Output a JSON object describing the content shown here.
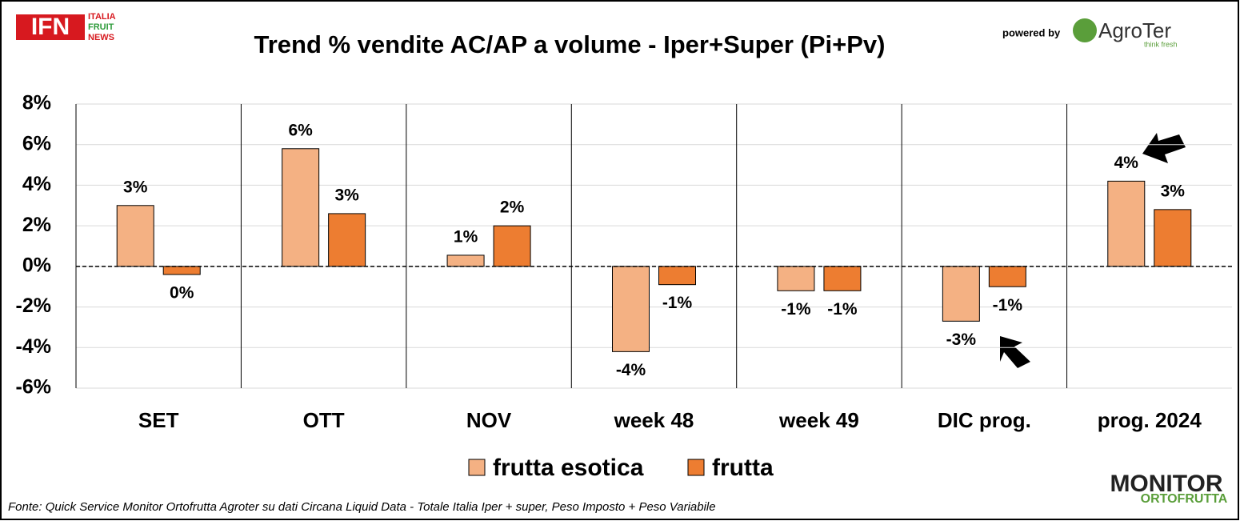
{
  "chart_data": {
    "type": "bar",
    "title": "Trend % vendite AC/AP a volume -  Iper+Super (Pi+Pv)",
    "categories": [
      "SET",
      "OTT",
      "NOV",
      "week 48",
      "week 49",
      "DIC prog.",
      "prog. 2024"
    ],
    "series": [
      {
        "name": "frutta esotica",
        "color": "#f4b183",
        "values": [
          3.0,
          5.8,
          0.55,
          -4.2,
          -1.2,
          -2.7,
          4.2
        ],
        "value_labels": [
          "3%",
          "6%",
          "1%",
          "-4%",
          "-1%",
          "-3%",
          "4%"
        ]
      },
      {
        "name": "frutta",
        "color": "#ed7d31",
        "values": [
          -0.4,
          2.6,
          2.0,
          -0.9,
          -1.2,
          -1.0,
          2.8
        ],
        "value_labels": [
          "0%",
          "3%",
          "2%",
          "-1%",
          "-1%",
          "-1%",
          "3%"
        ]
      }
    ],
    "ylim": [
      -6,
      8
    ],
    "yticks": [
      {
        "value": -6,
        "label": "-6%"
      },
      {
        "value": -4,
        "label": "-4%"
      },
      {
        "value": -2,
        "label": "-2%"
      },
      {
        "value": 0,
        "label": "0%"
      },
      {
        "value": 2,
        "label": "2%"
      },
      {
        "value": 4,
        "label": "4%"
      },
      {
        "value": 6,
        "label": "6%"
      },
      {
        "value": 8,
        "label": "8%"
      }
    ],
    "grid": true,
    "legend": "bottom",
    "source": "Fonte: Quick Service Monitor Ortofrutta Agroter su dati Circana Liquid Data - Totale Italia Iper + super, Peso Imposto + Peso Variabile"
  },
  "branding": {
    "ifn": "IFN",
    "ifn_sub": [
      "ITALIA",
      "FRUIT",
      "NEWS"
    ],
    "powered": "powered by",
    "agroter": "AgroTer",
    "agroter_tag": "think fresh",
    "monitor": "MONITOR",
    "ortofrutta": "ORTOFRUTTA"
  }
}
